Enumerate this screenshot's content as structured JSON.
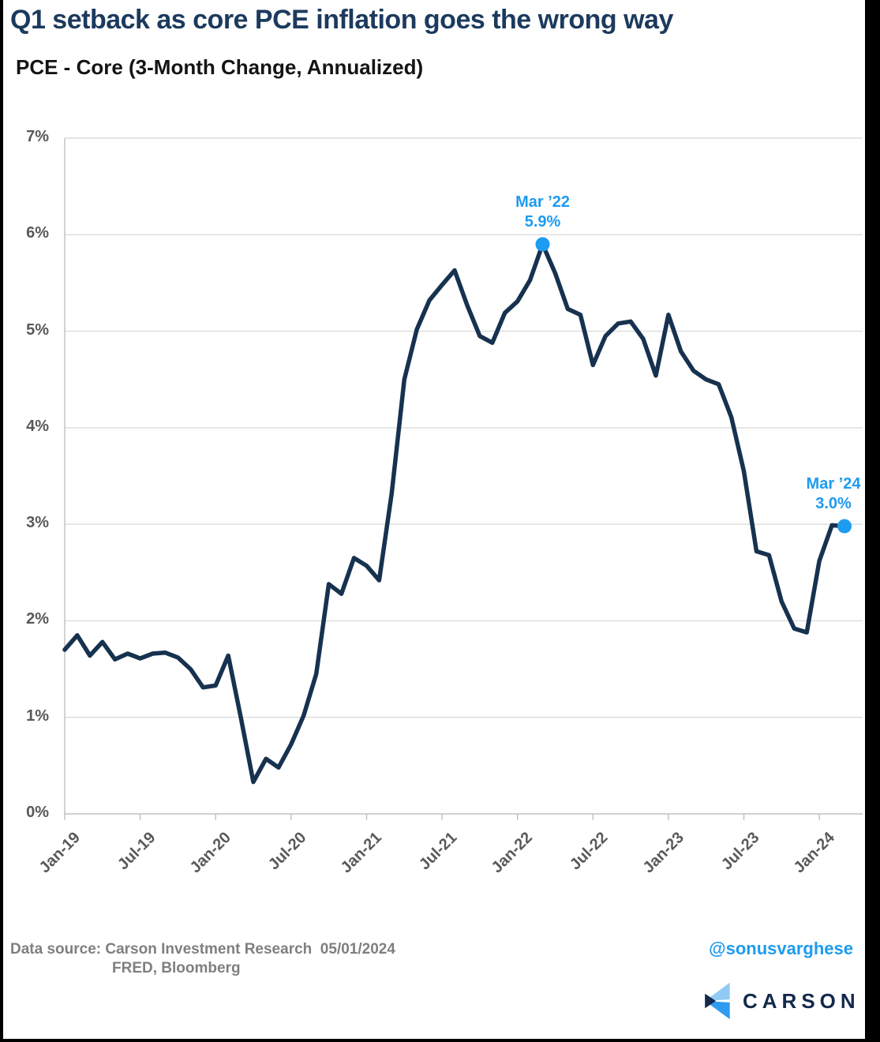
{
  "page": {
    "title": "Q1 setback as core PCE inflation goes the wrong way",
    "subtitle": "PCE - Core (3-Month Change, Annualized)"
  },
  "chart_data": {
    "type": "line",
    "title": "PCE - Core (3-Month Change, Annualized)",
    "x": [
      "Jan-19",
      "Feb-19",
      "Mar-19",
      "Apr-19",
      "May-19",
      "Jun-19",
      "Jul-19",
      "Aug-19",
      "Sep-19",
      "Oct-19",
      "Nov-19",
      "Dec-19",
      "Jan-20",
      "Feb-20",
      "Mar-20",
      "Apr-20",
      "May-20",
      "Jun-20",
      "Jul-20",
      "Aug-20",
      "Sep-20",
      "Oct-20",
      "Nov-20",
      "Dec-20",
      "Jan-21",
      "Feb-21",
      "Mar-21",
      "Apr-21",
      "May-21",
      "Jun-21",
      "Jul-21",
      "Aug-21",
      "Sep-21",
      "Oct-21",
      "Nov-21",
      "Dec-21",
      "Jan-22",
      "Feb-22",
      "Mar-22",
      "Apr-22",
      "May-22",
      "Jun-22",
      "Jul-22",
      "Aug-22",
      "Sep-22",
      "Oct-22",
      "Nov-22",
      "Dec-22",
      "Jan-23",
      "Feb-23",
      "Mar-23",
      "Apr-23",
      "May-23",
      "Jun-23",
      "Jul-23",
      "Aug-23",
      "Sep-23",
      "Oct-23",
      "Nov-23",
      "Dec-23",
      "Jan-24",
      "Feb-24",
      "Mar-24"
    ],
    "values": [
      1.7,
      1.85,
      1.64,
      1.78,
      1.6,
      1.66,
      1.61,
      1.66,
      1.67,
      1.62,
      1.5,
      1.31,
      1.33,
      1.64,
      1.0,
      0.33,
      0.57,
      0.48,
      0.72,
      1.02,
      1.45,
      2.38,
      2.28,
      2.65,
      2.57,
      2.42,
      3.32,
      4.5,
      5.02,
      5.32,
      5.48,
      5.63,
      5.27,
      4.95,
      4.88,
      5.19,
      5.31,
      5.53,
      5.9,
      5.6,
      5.23,
      5.17,
      4.65,
      4.95,
      5.08,
      5.1,
      4.92,
      4.54,
      5.17,
      4.79,
      4.59,
      4.5,
      4.45,
      4.11,
      3.55,
      2.72,
      2.68,
      2.2,
      1.92,
      1.88,
      2.62,
      2.99,
      2.98
    ],
    "x_tick_labels": [
      "Jan-19",
      "Jul-19",
      "Jan-20",
      "Jul-20",
      "Jan-21",
      "Jul-21",
      "Jan-22",
      "Jul-22",
      "Jan-23",
      "Jul-23",
      "Jan-24"
    ],
    "y_tick_labels": [
      "0%",
      "1%",
      "2%",
      "3%",
      "4%",
      "5%",
      "6%",
      "7%"
    ],
    "ylim": [
      0,
      7
    ],
    "grid": "horizontal",
    "legend": "none",
    "annotations": [
      {
        "x": "Mar-22",
        "value": 5.9,
        "line1": "Mar ’22",
        "line2": "5.9%"
      },
      {
        "x": "Mar-24",
        "value": 2.98,
        "line1": "Mar ’24",
        "line2": "3.0%"
      }
    ]
  },
  "footer": {
    "source_line1": "Data source: Carson Investment Research  05/01/2024",
    "source_line2": "FRED, Bloomberg",
    "handle": "@sonusvarghese",
    "logo_text": "CARSON"
  },
  "colors": {
    "title": "#1c3a5e",
    "line": "#16324f",
    "accent": "#1d9bf0",
    "grid": "#dcdcdc",
    "axis": "#c0c0c0",
    "axis_text": "#595959",
    "footer_text": "#7f7f7f",
    "logo_navy": "#13294b",
    "logo_light_blue": "#8fcbf4",
    "logo_blue": "#2e9bf0"
  }
}
